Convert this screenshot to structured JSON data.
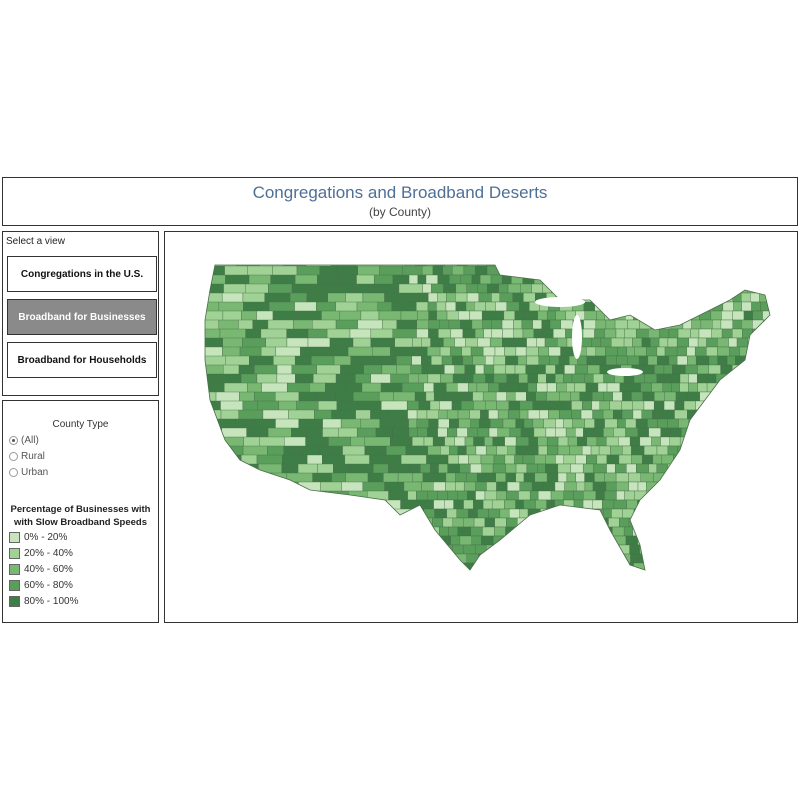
{
  "header": {
    "title": "Congregations and Broadband Deserts",
    "subtitle": "(by County)"
  },
  "view_selector": {
    "label": "Select a view",
    "buttons": [
      "Congregations in the U.S.",
      "Broadband for Businesses",
      "Broadband for Households"
    ],
    "selected": 1
  },
  "filter": {
    "title": "County Type",
    "options": [
      "(All)",
      "Rural",
      "Urban"
    ],
    "selected": 0
  },
  "legend": {
    "title": [
      "Percentage of Businesses with",
      "with Slow Broadband Speeds"
    ],
    "items": [
      {
        "label": "0% - 20%",
        "color": "#c6e5bd"
      },
      {
        "label": "20% - 40%",
        "color": "#9fd294"
      },
      {
        "label": "40% - 60%",
        "color": "#79b873"
      },
      {
        "label": "60% - 80%",
        "color": "#5a9e5c"
      },
      {
        "label": "80% - 100%",
        "color": "#3f7d47"
      }
    ]
  }
}
